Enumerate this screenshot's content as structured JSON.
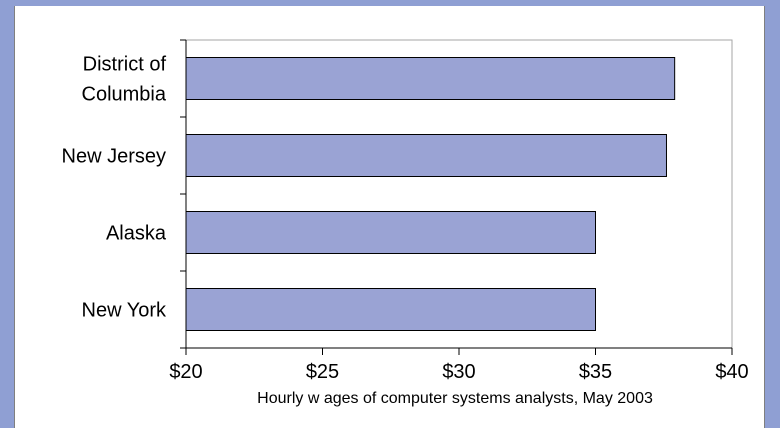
{
  "chart_data": {
    "type": "bar",
    "orientation": "horizontal",
    "categories": [
      [
        "District of",
        "Columbia"
      ],
      [
        "New Jersey"
      ],
      [
        "Alaska"
      ],
      [
        "New York"
      ]
    ],
    "values": [
      37.9,
      37.6,
      35.0,
      35.0
    ],
    "xlabel": "Hourly w ages of computer systems analysts, May 2003",
    "xlim": [
      20,
      40
    ],
    "xticks": [
      20,
      25,
      30,
      35,
      40
    ],
    "xtick_labels": [
      "$20",
      "$25",
      "$30",
      "$35",
      "$40"
    ],
    "bar_color": "#9aa3d4",
    "bar_edge_color": "#000000",
    "background": "#8f9fd3",
    "grid": false,
    "legend": "none"
  }
}
